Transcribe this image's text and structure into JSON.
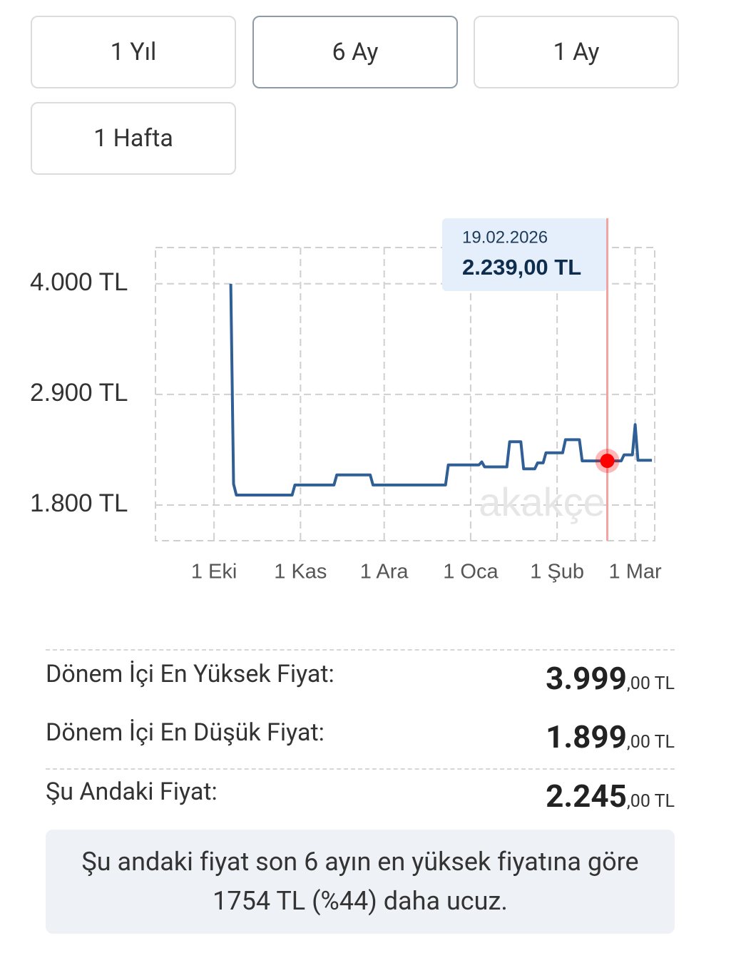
{
  "buttons": [
    {
      "label": "1 Yıl",
      "selected": false
    },
    {
      "label": "6 Ay",
      "selected": true
    },
    {
      "label": "1 Ay",
      "selected": false
    },
    {
      "label": "1 Hafta",
      "selected": false
    }
  ],
  "chart_data": {
    "type": "line",
    "color": "#2f5f95",
    "watermark": "akakçe",
    "x": [
      "2025-10-07",
      "2025-10-08",
      "2025-10-09",
      "2025-10-29",
      "2025-10-30",
      "2025-11-13",
      "2025-11-14",
      "2025-11-26",
      "2025-11-27",
      "2025-12-23",
      "2025-12-24",
      "2026-01-04",
      "2026-01-05",
      "2026-01-06",
      "2026-01-14",
      "2026-01-15",
      "2026-01-19",
      "2026-01-20",
      "2026-01-24",
      "2026-01-25",
      "2026-01-27",
      "2026-01-28",
      "2026-02-03",
      "2026-02-04",
      "2026-02-09",
      "2026-02-10",
      "2026-02-24",
      "2026-02-25",
      "2026-02-28",
      "2026-03-01",
      "2026-03-02",
      "2026-03-07"
    ],
    "values": [
      3999,
      2009,
      1899,
      1899,
      1999,
      1999,
      2099,
      2099,
      1999,
      1999,
      2199,
      2199,
      2229,
      2179,
      2179,
      2429,
      2429,
      2159,
      2159,
      2219,
      2219,
      2319,
      2319,
      2449,
      2449,
      2239,
      2239,
      2299,
      2299,
      2599,
      2245,
      2245
    ],
    "xlim": [
      "2025-09-10",
      "2026-03-08"
    ],
    "xticks": [
      {
        "value": "2025-10-01",
        "label": "1 Eki"
      },
      {
        "value": "2025-11-01",
        "label": "1 Kas"
      },
      {
        "value": "2025-12-01",
        "label": "1 Ara"
      },
      {
        "value": "2026-01-01",
        "label": "1 Oca"
      },
      {
        "value": "2026-02-01",
        "label": "1 Şub"
      },
      {
        "value": "2026-03-01",
        "label": "1 Mar"
      }
    ],
    "ylim": [
      1445,
      4360
    ],
    "yticks": [
      {
        "value": 1800,
        "label": "1.800 TL"
      },
      {
        "value": 2900,
        "label": "2.900 TL"
      },
      {
        "value": 4000,
        "label": "4.000 TL"
      }
    ],
    "grid": true,
    "highlight": {
      "x": "2026-02-19",
      "date_label": "19.02.2026",
      "value": 2239,
      "value_label": "2.239,00 TL"
    }
  },
  "stats": [
    {
      "label": "Dönem İçi En Yüksek Fiyat:",
      "value": "3.999",
      "fraction": ",00 TL"
    },
    {
      "label": "Dönem İçi En Düşük Fiyat:",
      "value": "1.899",
      "fraction": ",00 TL"
    },
    {
      "label": "Şu Andaki Fiyat:",
      "value": "2.245",
      "fraction": ",00 TL"
    }
  ],
  "note": "Şu andaki fiyat son 6 ayın en yüksek fiyatına göre 1754 TL (%44) daha ucuz."
}
